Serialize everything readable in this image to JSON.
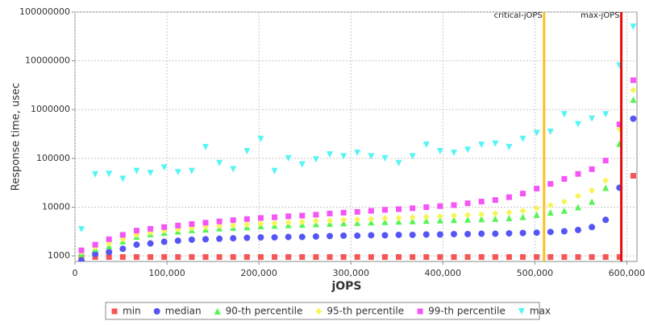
{
  "chart_data": {
    "type": "scatter",
    "x_label": "jOPS",
    "y_label": "Response time, usec",
    "log_y": true,
    "grid": true,
    "legend": "bottom",
    "xlim": [
      0,
      611000
    ],
    "ylim": [
      770,
      100000000
    ],
    "xticks": [
      0,
      {
        "value": 100000,
        "label": "100,000"
      },
      {
        "value": 200000,
        "label": "200,000"
      },
      {
        "value": 300000,
        "label": "300,000"
      },
      {
        "value": 400000,
        "label": "400,000"
      },
      {
        "value": 500000,
        "label": "500,000"
      },
      {
        "value": 600000,
        "label": "600,000"
      }
    ],
    "yticks": [
      1000,
      10000,
      100000,
      1000000,
      10000000,
      100000000
    ],
    "vlines": [
      {
        "label": "critical-jOPS",
        "x": 510000,
        "color": "#ffc020"
      },
      {
        "label": "max-jOPS",
        "x": 594000,
        "color": "#e01010"
      }
    ],
    "x": [
      7000,
      22000,
      37000,
      52000,
      67000,
      82000,
      97000,
      112000,
      127000,
      142000,
      157000,
      172000,
      187000,
      202000,
      217000,
      232000,
      247000,
      262000,
      277000,
      292000,
      307000,
      322000,
      337000,
      352000,
      367000,
      382000,
      397000,
      412000,
      427000,
      442000,
      457000,
      472000,
      487000,
      502000,
      517000,
      532000,
      547000,
      562000,
      577000,
      592000,
      607000
    ],
    "series": [
      {
        "name": "min",
        "color": "#f55555",
        "marker": "square",
        "values": [
          950,
          950,
          950,
          950,
          950,
          950,
          950,
          950,
          950,
          950,
          950,
          950,
          950,
          950,
          950,
          950,
          950,
          950,
          950,
          950,
          950,
          950,
          950,
          950,
          950,
          950,
          950,
          950,
          950,
          950,
          950,
          950,
          950,
          950,
          950,
          950,
          950,
          950,
          950,
          950,
          44000
        ]
      },
      {
        "name": "median",
        "color": "#5555f5",
        "marker": "circle",
        "values": [
          800,
          1100,
          1200,
          1400,
          1700,
          1800,
          1950,
          2050,
          2150,
          2200,
          2250,
          2300,
          2350,
          2400,
          2400,
          2450,
          2450,
          2500,
          2550,
          2600,
          2600,
          2650,
          2650,
          2700,
          2700,
          2750,
          2750,
          2800,
          2800,
          2850,
          2850,
          2900,
          2950,
          3000,
          3100,
          3200,
          3400,
          3900,
          5500,
          25000,
          650000
        ]
      },
      {
        "name": "90-th percentile",
        "color": "#55f555",
        "marker": "triangle",
        "values": [
          1100,
          1400,
          1600,
          2000,
          2500,
          2800,
          3000,
          3200,
          3400,
          3500,
          3700,
          3800,
          3900,
          4100,
          4200,
          4300,
          4400,
          4500,
          4600,
          4700,
          4800,
          4900,
          5000,
          5100,
          5200,
          5300,
          5400,
          5500,
          5600,
          5700,
          5800,
          6000,
          6300,
          7000,
          7800,
          8500,
          10000,
          13000,
          25000,
          200000,
          1600000
        ]
      },
      {
        "name": "95-th percentile",
        "color": "#f5f555",
        "marker": "diamond",
        "values": [
          1200,
          1500,
          1800,
          2200,
          2700,
          3000,
          3300,
          3500,
          3700,
          3900,
          4100,
          4200,
          4400,
          4600,
          4700,
          4900,
          5000,
          5200,
          5300,
          5500,
          5600,
          5700,
          5900,
          6000,
          6200,
          6300,
          6500,
          6700,
          6900,
          7100,
          7400,
          7800,
          8400,
          9500,
          11000,
          13000,
          17000,
          22000,
          35000,
          400000,
          2500000
        ]
      },
      {
        "name": "99-th percentile",
        "color": "#f555f5",
        "marker": "square",
        "values": [
          1300,
          1700,
          2200,
          2700,
          3300,
          3600,
          3900,
          4200,
          4500,
          4800,
          5100,
          5400,
          5700,
          6000,
          6200,
          6500,
          6700,
          7000,
          7400,
          7700,
          8000,
          8400,
          8800,
          9100,
          9500,
          10000,
          10500,
          11000,
          12000,
          13000,
          14000,
          16000,
          19000,
          24000,
          30000,
          38000,
          48000,
          60000,
          90000,
          500000,
          4000000
        ]
      },
      {
        "name": "max",
        "color": "#55f5f5",
        "marker": "dtriangle",
        "values": [
          3500,
          47000,
          48000,
          38000,
          55000,
          50000,
          65000,
          52000,
          55000,
          170000,
          80000,
          60000,
          140000,
          250000,
          55000,
          100000,
          75000,
          95000,
          120000,
          110000,
          130000,
          110000,
          100000,
          80000,
          110000,
          190000,
          140000,
          130000,
          150000,
          190000,
          200000,
          170000,
          250000,
          330000,
          350000,
          800000,
          500000,
          650000,
          800000,
          8000000,
          50000000
        ]
      }
    ]
  }
}
